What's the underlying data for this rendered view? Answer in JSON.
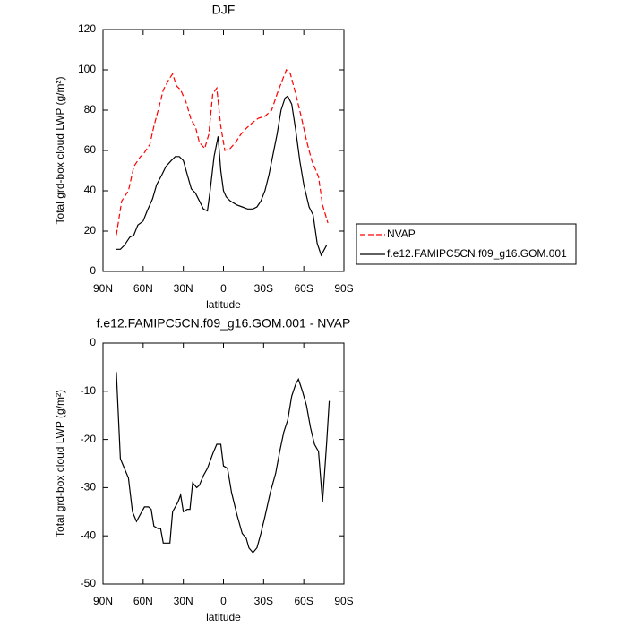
{
  "chart_data": [
    {
      "type": "line",
      "title": "DJF",
      "xlabel": "latitude",
      "ylabel": "Total grd-box cloud LWP (g/m²)",
      "xlim": [
        90,
        -90
      ],
      "ylim": [
        0,
        120
      ],
      "xticks": [
        {
          "value": 90,
          "label": "90N"
        },
        {
          "value": 60,
          "label": "60N"
        },
        {
          "value": 30,
          "label": "30N"
        },
        0,
        {
          "value": -30,
          "label": "30S"
        },
        {
          "value": -60,
          "label": "60S"
        },
        {
          "value": -90,
          "label": "90S"
        }
      ],
      "yticks": [
        0,
        20,
        40,
        60,
        80,
        100,
        120
      ],
      "legend": "right",
      "series": [
        {
          "name": "NVAP",
          "color": "#ff0000",
          "dashed": true,
          "x": [
            80,
            76,
            71,
            67,
            62,
            60,
            55,
            52,
            48,
            45,
            41,
            38,
            35,
            32,
            28,
            24,
            21,
            18,
            14,
            11,
            8,
            5,
            2,
            -1,
            -5,
            -9,
            -13,
            -17,
            -22,
            -26,
            -31,
            -36,
            -40,
            -44,
            -47,
            -50,
            -54,
            -58,
            -62,
            -66,
            -71,
            -74,
            -78
          ],
          "values": [
            18,
            35,
            40,
            52,
            57,
            58,
            63,
            72,
            82,
            90,
            95,
            98,
            92,
            90,
            84,
            75,
            72,
            64,
            61,
            68,
            88,
            91,
            72,
            60,
            61,
            64,
            68,
            71,
            74,
            76,
            77,
            80,
            88,
            95,
            100,
            98,
            88,
            77,
            65,
            55,
            47,
            33,
            24
          ]
        },
        {
          "name": "f.e12.FAMIPC5CN.f09_g16.GOM.001",
          "color": "#000000",
          "dashed": false,
          "x": [
            80,
            77,
            74,
            70,
            67,
            64,
            60,
            57,
            53,
            50,
            46,
            43,
            39,
            36,
            33,
            30,
            27,
            24,
            21,
            18,
            15,
            12,
            10,
            7,
            4,
            2,
            0,
            -2,
            -5,
            -10,
            -14,
            -18,
            -22,
            -25,
            -28,
            -31,
            -34,
            -37,
            -40,
            -43,
            -46,
            -48,
            -51,
            -54,
            -57,
            -60,
            -64,
            -67,
            -70,
            -73,
            -77
          ],
          "values": [
            11,
            11,
            13,
            17,
            18,
            23,
            25,
            30,
            36,
            43,
            48,
            52,
            55,
            57,
            57,
            55,
            48,
            41,
            39,
            35,
            31,
            30,
            40,
            57,
            67,
            50,
            40,
            37,
            35,
            33,
            32,
            31,
            31,
            32,
            35,
            40,
            48,
            58,
            68,
            80,
            86,
            87,
            83,
            70,
            55,
            43,
            32,
            28,
            14,
            8,
            13
          ]
        }
      ]
    },
    {
      "type": "line",
      "title": "f.e12.FAMIPC5CN.f09_g16.GOM.001 - NVAP",
      "xlabel": "latitude",
      "ylabel": "Total grd-box cloud LWP (g/m²)",
      "xlim": [
        90,
        -90
      ],
      "ylim": [
        -50,
        0
      ],
      "xticks": [
        {
          "value": 90,
          "label": "90N"
        },
        {
          "value": 60,
          "label": "60N"
        },
        {
          "value": 30,
          "label": "30N"
        },
        0,
        {
          "value": -30,
          "label": "30S"
        },
        {
          "value": -60,
          "label": "60S"
        },
        {
          "value": -90,
          "label": "90S"
        }
      ],
      "yticks": [
        -50,
        -40,
        -30,
        -20,
        -10,
        0
      ],
      "series": [
        {
          "color": "#000000",
          "dashed": false,
          "x": [
            80,
            77,
            74,
            71,
            68,
            65,
            62,
            59,
            56,
            54,
            52,
            49,
            47,
            45,
            40,
            38,
            34,
            32,
            30,
            27,
            25,
            23,
            20,
            18,
            15,
            12,
            8,
            5,
            2,
            0,
            -3,
            -6,
            -10,
            -14,
            -17,
            -19,
            -22,
            -25,
            -28,
            -31,
            -35,
            -39,
            -42,
            -45,
            -48,
            -51,
            -54,
            -56,
            -59,
            -62,
            -65,
            -68,
            -71,
            -74,
            -77,
            -79
          ],
          "values": [
            -6,
            -24,
            -26,
            -28,
            -35,
            -37,
            -35.5,
            -34,
            -34,
            -34.5,
            -38,
            -38.5,
            -38.5,
            -41.5,
            -41.5,
            -35,
            -33,
            -31.5,
            -35,
            -34.5,
            -34.5,
            -29,
            -30,
            -29.5,
            -27.5,
            -26,
            -23,
            -21,
            -21,
            -25.5,
            -26,
            -31,
            -35.5,
            -39.5,
            -40.5,
            -42.5,
            -43.5,
            -42.5,
            -39.5,
            -36,
            -31,
            -27,
            -22.5,
            -18.5,
            -16,
            -11,
            -8.5,
            -7.5,
            -10,
            -13,
            -17.5,
            -21,
            -22.5,
            -33,
            -21,
            -12
          ]
        }
      ]
    }
  ]
}
